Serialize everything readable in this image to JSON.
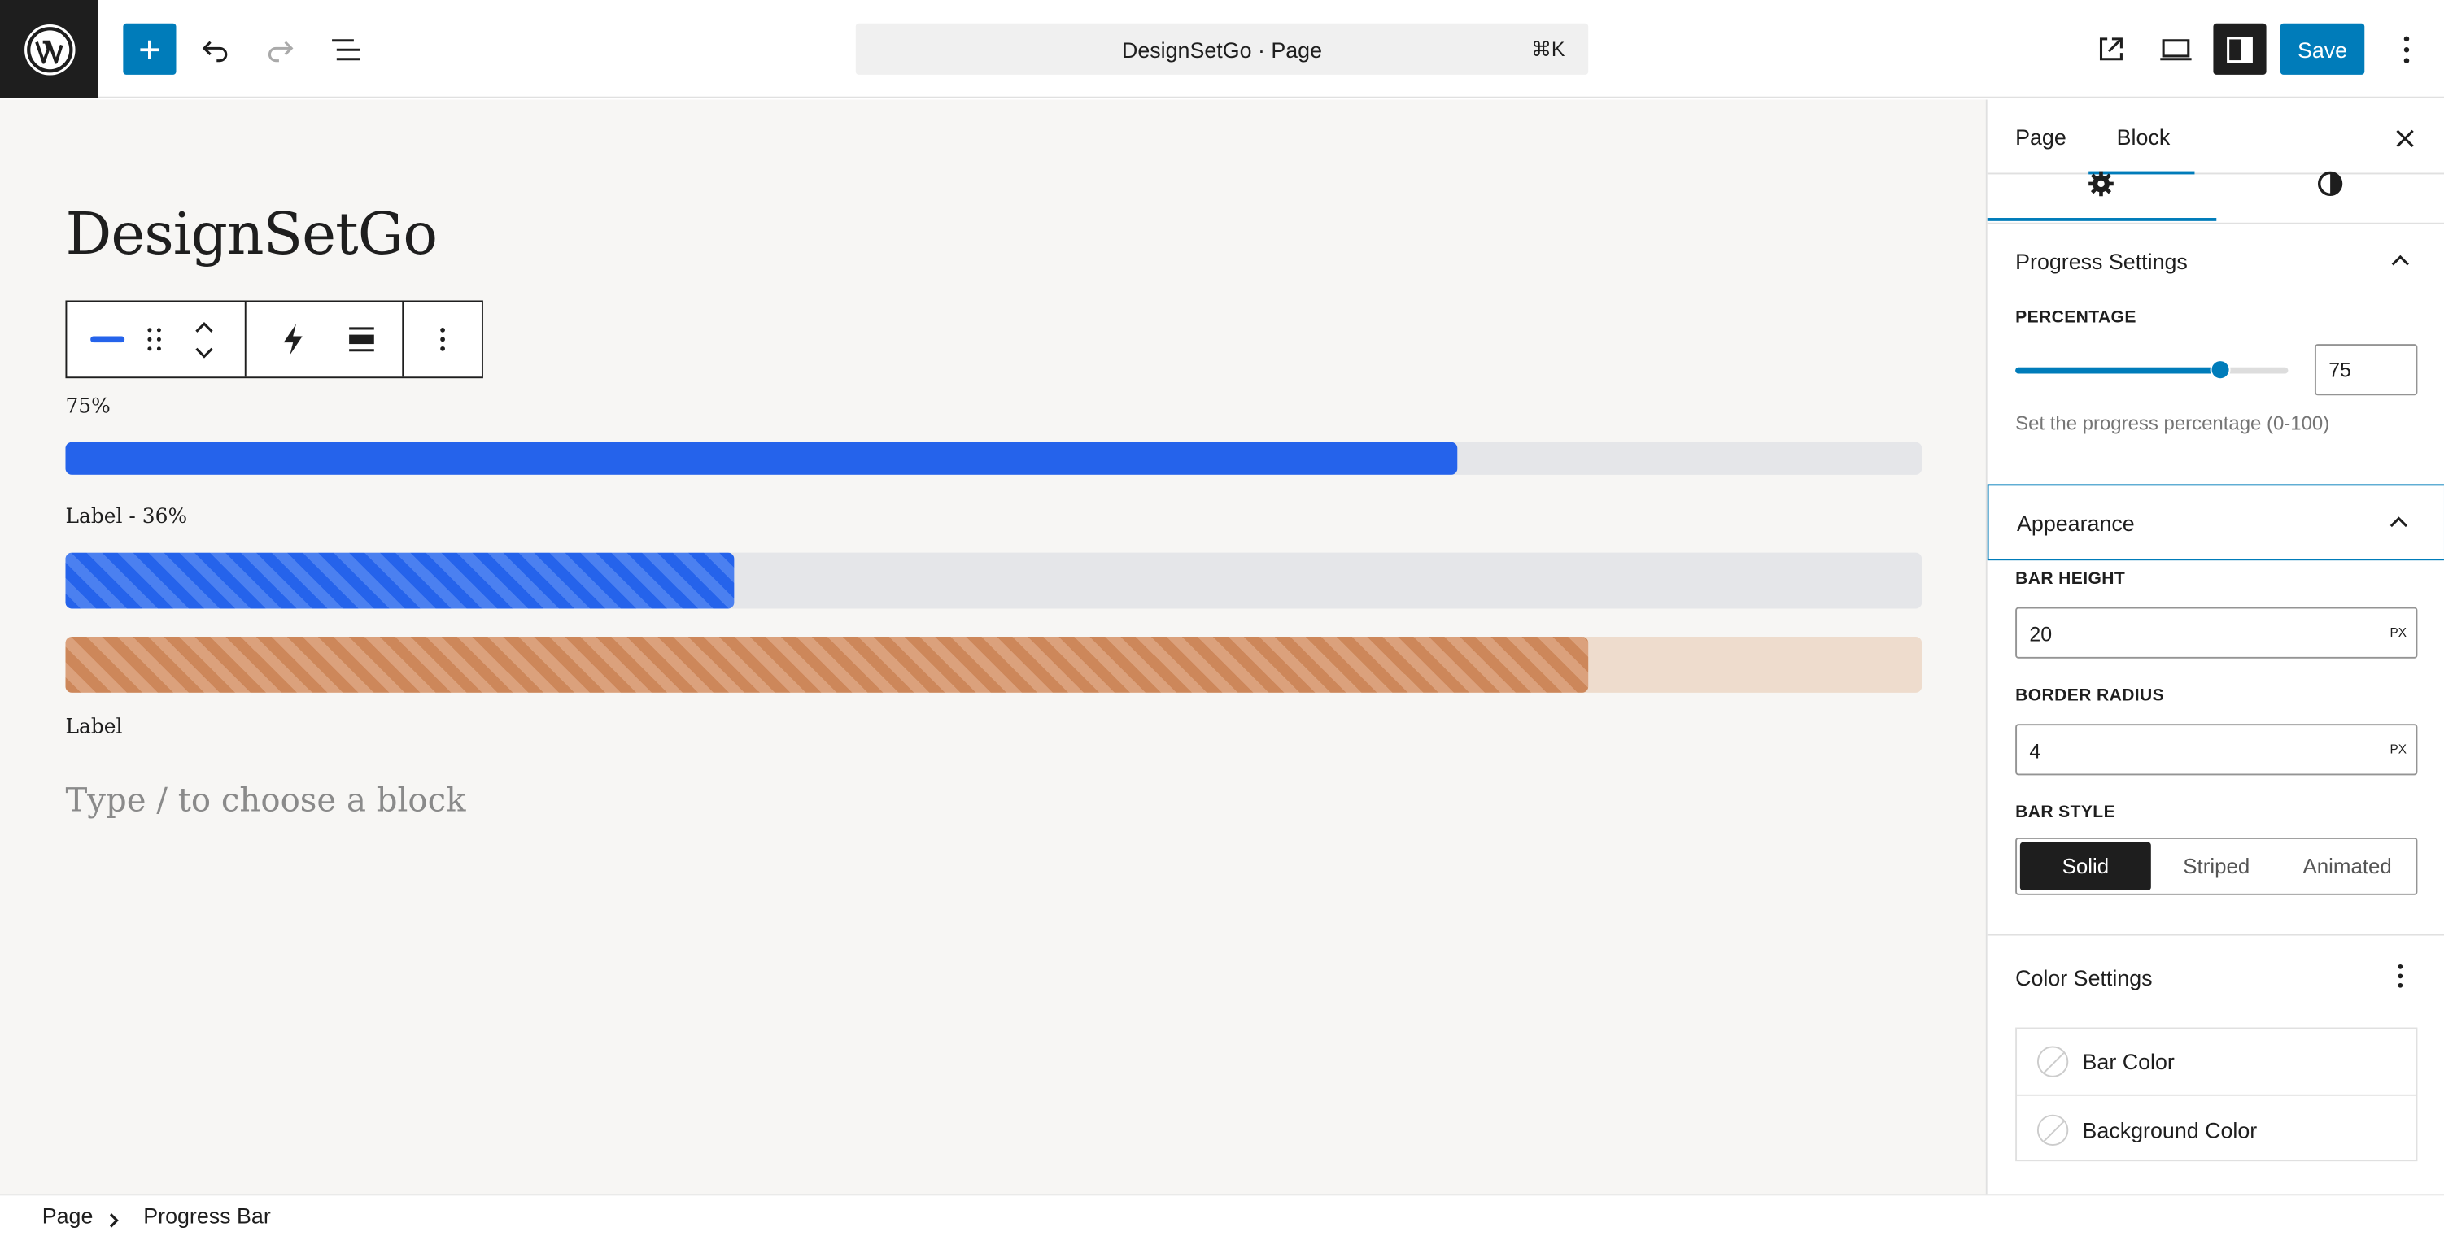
{
  "topbar": {
    "document_title": "DesignSetGo · Page",
    "shortcut": "⌘K",
    "save_label": "Save"
  },
  "canvas": {
    "page_title": "DesignSetGo",
    "bars": [
      {
        "label": "75%",
        "percent": 75,
        "style": "solid",
        "color": "#2563eb",
        "track_color": "#e5e6e9"
      },
      {
        "label": "Label - 36%",
        "percent": 36,
        "style": "striped",
        "color": "#2563eb",
        "track_color": "#e5e6e9"
      },
      {
        "label": "Label",
        "percent": 82,
        "style": "striped",
        "color": "#cd875a",
        "track_color": "#eedccd"
      }
    ],
    "placeholder": "Type / to choose a block"
  },
  "sidebar": {
    "tabs": [
      "Page",
      "Block"
    ],
    "active_tab": "Block",
    "progress_settings": {
      "title": "Progress Settings",
      "percentage_label": "PERCENTAGE",
      "percentage_value": "75",
      "percentage_fraction": 0.75,
      "help": "Set the progress percentage (0-100)"
    },
    "appearance": {
      "title": "Appearance",
      "bar_height_label": "BAR HEIGHT",
      "bar_height_value": "20",
      "bar_height_unit": "PX",
      "border_radius_label": "BORDER RADIUS",
      "border_radius_value": "4",
      "border_radius_unit": "PX",
      "bar_style_label": "BAR STYLE",
      "bar_style_options": [
        "Solid",
        "Striped",
        "Animated"
      ],
      "bar_style_selected": "Solid"
    },
    "color_settings": {
      "title": "Color Settings",
      "items": [
        "Bar Color",
        "Background Color"
      ]
    }
  },
  "footer": {
    "breadcrumb": [
      "Page",
      "Progress Bar"
    ]
  },
  "colors": {
    "accent": "#007cba",
    "dark": "#1e1e1e"
  }
}
